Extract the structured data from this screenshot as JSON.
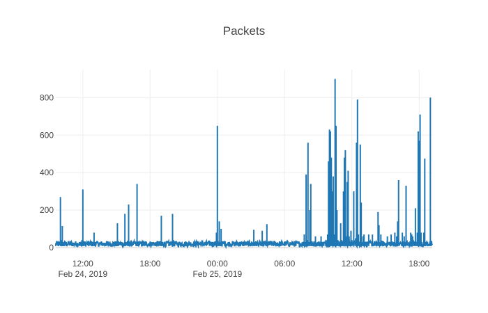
{
  "chart_data": {
    "type": "line",
    "title": "Packets",
    "xlabel": "",
    "ylabel": "",
    "xlim": [
      "2019-02-24 09:35",
      "2019-02-25 19:10"
    ],
    "ylim": [
      -15,
      950
    ],
    "yticks": [
      0,
      200,
      400,
      600,
      800
    ],
    "ytick_labels": [
      "0",
      "200",
      "400",
      "600",
      "800"
    ],
    "xticks": [
      {
        "t": "2019-02-24 12:00",
        "label": "12:00",
        "sublabel": "Feb 24, 2019"
      },
      {
        "t": "2019-02-24 18:00",
        "label": "18:00",
        "sublabel": ""
      },
      {
        "t": "2019-02-25 00:00",
        "label": "00:00",
        "sublabel": "Feb 25, 2019"
      },
      {
        "t": "2019-02-25 06:00",
        "label": "06:00",
        "sublabel": ""
      },
      {
        "t": "2019-02-25 12:00",
        "label": "12:00",
        "sublabel": ""
      },
      {
        "t": "2019-02-25 18:00",
        "label": "18:00",
        "sublabel": ""
      }
    ],
    "grid": true,
    "legend": "none",
    "series": [
      {
        "color": "#1f77b4",
        "x": [
          "2019-02-24 09:35",
          "2019-02-24 09:50",
          "2019-02-24 10:00",
          "2019-02-24 10:05",
          "2019-02-24 10:10",
          "2019-02-24 10:15",
          "2019-02-24 10:20",
          "2019-02-24 10:30",
          "2019-02-24 11:00",
          "2019-02-24 11:45",
          "2019-02-24 11:55",
          "2019-02-24 12:00",
          "2019-02-24 12:05",
          "2019-02-24 12:30",
          "2019-02-24 12:55",
          "2019-02-24 13:00",
          "2019-02-24 13:05",
          "2019-02-24 14:00",
          "2019-02-24 14:45",
          "2019-02-24 15:00",
          "2019-02-24 15:05",
          "2019-02-24 15:10",
          "2019-02-24 15:40",
          "2019-02-24 15:45",
          "2019-02-24 15:50",
          "2019-02-24 16:00",
          "2019-02-24 16:05",
          "2019-02-24 16:10",
          "2019-02-24 16:20",
          "2019-02-24 16:45",
          "2019-02-24 16:50",
          "2019-02-24 16:55",
          "2019-02-24 17:30",
          "2019-02-24 18:30",
          "2019-02-24 18:55",
          "2019-02-24 19:00",
          "2019-02-24 19:05",
          "2019-02-24 19:40",
          "2019-02-24 20:00",
          "2019-02-24 20:05",
          "2019-02-24 20:10",
          "2019-02-24 21:00",
          "2019-02-24 22:00",
          "2019-02-24 23:00",
          "2019-02-24 23:40",
          "2019-02-24 23:55",
          "2019-02-25 00:00",
          "2019-02-25 00:05",
          "2019-02-25 00:10",
          "2019-02-25 00:15",
          "2019-02-25 00:20",
          "2019-02-25 00:25",
          "2019-02-25 01:00",
          "2019-02-25 01:30",
          "2019-02-25 02:00",
          "2019-02-25 03:00",
          "2019-02-25 03:15",
          "2019-02-25 03:20",
          "2019-02-25 03:55",
          "2019-02-25 04:00",
          "2019-02-25 04:05",
          "2019-02-25 04:20",
          "2019-02-25 04:25",
          "2019-02-25 04:30",
          "2019-02-25 05:00",
          "2019-02-25 06:00",
          "2019-02-25 07:00",
          "2019-02-25 07:40",
          "2019-02-25 07:45",
          "2019-02-25 07:50",
          "2019-02-25 07:55",
          "2019-02-25 08:00",
          "2019-02-25 08:05",
          "2019-02-25 08:10",
          "2019-02-25 08:15",
          "2019-02-25 08:20",
          "2019-02-25 08:25",
          "2019-02-25 08:30",
          "2019-02-25 08:45",
          "2019-02-25 09:00",
          "2019-02-25 09:15",
          "2019-02-25 09:30",
          "2019-02-25 09:45",
          "2019-02-25 09:50",
          "2019-02-25 09:55",
          "2019-02-25 10:00",
          "2019-02-25 10:05",
          "2019-02-25 10:10",
          "2019-02-25 10:15",
          "2019-02-25 10:20",
          "2019-02-25 10:25",
          "2019-02-25 10:30",
          "2019-02-25 10:35",
          "2019-02-25 10:40",
          "2019-02-25 10:45",
          "2019-02-25 10:50",
          "2019-02-25 10:55",
          "2019-02-25 11:00",
          "2019-02-25 11:05",
          "2019-02-25 11:10",
          "2019-02-25 11:15",
          "2019-02-25 11:20",
          "2019-02-25 11:25",
          "2019-02-25 11:30",
          "2019-02-25 11:35",
          "2019-02-25 11:40",
          "2019-02-25 11:45",
          "2019-02-25 11:50",
          "2019-02-25 11:55",
          "2019-02-25 12:00",
          "2019-02-25 12:10",
          "2019-02-25 12:20",
          "2019-02-25 12:25",
          "2019-02-25 12:30",
          "2019-02-25 12:35",
          "2019-02-25 12:40",
          "2019-02-25 12:45",
          "2019-02-25 12:50",
          "2019-02-25 12:55",
          "2019-02-25 13:00",
          "2019-02-25 13:05",
          "2019-02-25 13:10",
          "2019-02-25 13:30",
          "2019-02-25 13:50",
          "2019-02-25 14:10",
          "2019-02-25 14:20",
          "2019-02-25 14:25",
          "2019-02-25 14:30",
          "2019-02-25 14:35",
          "2019-02-25 14:50",
          "2019-02-25 15:10",
          "2019-02-25 15:30",
          "2019-02-25 15:45",
          "2019-02-25 15:50",
          "2019-02-25 16:00",
          "2019-02-25 16:05",
          "2019-02-25 16:10",
          "2019-02-25 16:30",
          "2019-02-25 16:40",
          "2019-02-25 16:45",
          "2019-02-25 16:50",
          "2019-02-25 17:15",
          "2019-02-25 17:20",
          "2019-02-25 17:25",
          "2019-02-25 17:40",
          "2019-02-25 17:45",
          "2019-02-25 17:50",
          "2019-02-25 17:55",
          "2019-02-25 18:00",
          "2019-02-25 18:05",
          "2019-02-25 18:10",
          "2019-02-25 18:15",
          "2019-02-25 18:25",
          "2019-02-25 18:30",
          "2019-02-25 18:35",
          "2019-02-25 18:45",
          "2019-02-25 18:50",
          "2019-02-25 19:00",
          "2019-02-25 19:05"
        ],
        "y": [
          20,
          30,
          270,
          40,
          115,
          30,
          25,
          20,
          25,
          20,
          40,
          310,
          30,
          25,
          20,
          80,
          30,
          25,
          30,
          20,
          130,
          35,
          20,
          180,
          30,
          25,
          230,
          30,
          20,
          25,
          340,
          30,
          20,
          25,
          30,
          170,
          30,
          20,
          180,
          40,
          25,
          20,
          30,
          25,
          20,
          80,
          650,
          30,
          140,
          25,
          100,
          30,
          20,
          25,
          20,
          25,
          95,
          30,
          25,
          90,
          30,
          20,
          125,
          30,
          20,
          20,
          25,
          30,
          70,
          30,
          390,
          40,
          560,
          30,
          200,
          340,
          30,
          20,
          60,
          30,
          60,
          30,
          40,
          70,
          460,
          630,
          620,
          480,
          300,
          380,
          70,
          900,
          650,
          200,
          40,
          30,
          20,
          130,
          40,
          30,
          300,
          480,
          520,
          60,
          350,
          410,
          60,
          30,
          90,
          40,
          300,
          50,
          560,
          790,
          70,
          30,
          550,
          240,
          30,
          60,
          70,
          30,
          70,
          70,
          30,
          190,
          120,
          30,
          70,
          30,
          60,
          70,
          30,
          80,
          60,
          140,
          360,
          80,
          60,
          30,
          330,
          80,
          70,
          60,
          210,
          30,
          80,
          620,
          570,
          710,
          80,
          30,
          80,
          475,
          30,
          30,
          20,
          800,
          30
        ]
      }
    ]
  }
}
